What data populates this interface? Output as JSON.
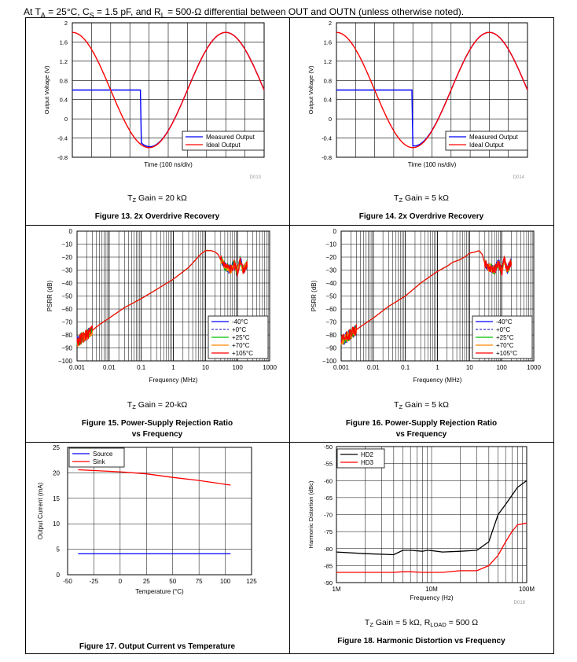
{
  "header": {
    "prefix": "At T",
    "ta_sub": "A",
    "ta_value": " = 25°C, C",
    "cs_sub": "S",
    "cs_value": " = 1.5 pF, and R",
    "rl_sub": "L",
    "rl_value": " = 500-Ω differential between OUT and OUTN (unless otherwise noted)."
  },
  "colors": {
    "measured": "#0000ff",
    "ideal": "#ff0000",
    "temp_m40": "#0000ff",
    "temp_0": "#3333cc",
    "temp_25": "#00c000",
    "temp_70": "#ff8800",
    "temp_105": "#ff0000",
    "hd2": "#000000",
    "hd3": "#ff0000",
    "source": "#0000ff",
    "sink": "#ff0000"
  },
  "chart_data": [
    {
      "id": "fig13",
      "type": "line",
      "title": "Figure 13. 2x Overdrive Recovery",
      "condition": "T",
      "condition_sub": "Z",
      "condition_rest": " Gain = 20 kΩ",
      "code": "D013",
      "xlabel": "Time (100 ns/div)",
      "ylabel": "Output Voltage (V)",
      "ylim": [
        -0.8,
        2
      ],
      "yticks": [
        "2",
        "1.6",
        "1.2",
        "0.8",
        "0.4",
        "0",
        "-0.4",
        "-0.8"
      ],
      "xlim": [
        0,
        10
      ],
      "legend": [
        "Measured Output",
        "Ideal Output"
      ],
      "ideal_wave": {
        "offset": 0.6,
        "amplitude": 1.2,
        "period_div": 8,
        "start_phase_div": -2
      },
      "measured": {
        "clip_level": 0.6,
        "recover_x_div": 3.55
      }
    },
    {
      "id": "fig14",
      "type": "line",
      "title": "Figure 14. 2x Overdrive Recovery",
      "condition": "T",
      "condition_sub": "Z",
      "condition_rest": " Gain = 5 kΩ",
      "code": "D014",
      "xlabel": "Time (100 ns/div)",
      "ylabel": "Output Voltage (V)",
      "ylim": [
        -0.8,
        2
      ],
      "yticks": [
        "2",
        "1.6",
        "1.2",
        "0.8",
        "0.4",
        "0",
        "-0.4",
        "-0.8"
      ],
      "xlim": [
        0,
        10
      ],
      "legend": [
        "Measured Output",
        "Ideal Output"
      ],
      "ideal_wave": {
        "offset": 0.6,
        "amplitude": 1.2,
        "period_div": 8,
        "start_phase_div": -2
      },
      "measured": {
        "clip_level": 0.6,
        "recover_x_div": 3.95
      }
    },
    {
      "id": "fig15",
      "type": "line",
      "title": "Figure 15. Power-Supply Rejection Ratio",
      "title2": "vs Frequency",
      "condition": "T",
      "condition_sub": "Z",
      "condition_rest": " Gain = 20-kΩ",
      "xlabel": "Frequency (MHz)",
      "ylabel": "PSRR (dB)",
      "ylim": [
        -100,
        0
      ],
      "yticks": [
        "0",
        "−10",
        "−20",
        "−30",
        "−40",
        "−50",
        "−60",
        "−70",
        "−80",
        "−90",
        "−100"
      ],
      "xticks": [
        "0.001",
        "0.01",
        "0.1",
        "1",
        "10",
        "100",
        "1000"
      ],
      "legend": [
        "-40°C",
        "+0°C",
        "+25°C",
        "+70°C",
        "+105°C"
      ],
      "curve": [
        [
          0.001,
          -85
        ],
        [
          0.002,
          -80
        ],
        [
          0.005,
          -72
        ],
        [
          0.01,
          -67
        ],
        [
          0.03,
          -59
        ],
        [
          0.1,
          -52
        ],
        [
          0.3,
          -45
        ],
        [
          1,
          -37
        ],
        [
          3,
          -28
        ],
        [
          5,
          -22
        ],
        [
          7,
          -18
        ],
        [
          10,
          -15
        ],
        [
          15,
          -15
        ],
        [
          20,
          -16
        ],
        [
          25,
          -18
        ],
        [
          30,
          -22
        ],
        [
          40,
          -27
        ],
        [
          60,
          -30
        ],
        [
          80,
          -25
        ],
        [
          100,
          -32
        ],
        [
          120,
          -22
        ],
        [
          150,
          -30
        ],
        [
          200,
          -25
        ]
      ]
    },
    {
      "id": "fig16",
      "type": "line",
      "title": "Figure 16. Power-Supply Rejection Ratio",
      "title2": "vs Frequency",
      "condition": "T",
      "condition_sub": "Z",
      "condition_rest": " Gain = 5 kΩ",
      "xlabel": "Frequency (MHz)",
      "ylabel": "PSRR (dB)",
      "ylim": [
        -100,
        0
      ],
      "yticks": [
        "0",
        "−10",
        "−20",
        "−30",
        "−40",
        "−50",
        "−60",
        "−70",
        "−80",
        "−90",
        "−100"
      ],
      "xticks": [
        "0.001",
        "0.01",
        "0.1",
        "1",
        "10",
        "100",
        "1000"
      ],
      "legend": [
        "-40°C",
        "+0°C",
        "+25°C",
        "+70°C",
        "+105°C"
      ],
      "curve": [
        [
          0.001,
          -85
        ],
        [
          0.002,
          -79
        ],
        [
          0.005,
          -72
        ],
        [
          0.01,
          -67
        ],
        [
          0.03,
          -58
        ],
        [
          0.1,
          -50
        ],
        [
          0.3,
          -40
        ],
        [
          1,
          -31
        ],
        [
          2,
          -27
        ],
        [
          3,
          -24
        ],
        [
          5,
          -22
        ],
        [
          8,
          -19
        ],
        [
          10,
          -17
        ],
        [
          15,
          -16
        ],
        [
          20,
          -15
        ],
        [
          25,
          -18
        ],
        [
          30,
          -25
        ],
        [
          40,
          -28
        ],
        [
          60,
          -30
        ],
        [
          80,
          -24
        ],
        [
          100,
          -32
        ],
        [
          120,
          -22
        ],
        [
          150,
          -30
        ],
        [
          200,
          -23
        ]
      ]
    },
    {
      "id": "fig17",
      "type": "line",
      "title": "Figure 17. Output Current vs Temperature",
      "xlabel": "Temperature (°C)",
      "ylabel": "Output Current (mA)",
      "xlim": [
        -50,
        125
      ],
      "ylim": [
        0,
        25
      ],
      "xticks": [
        "-50",
        "-25",
        "0",
        "25",
        "50",
        "75",
        "100",
        "125"
      ],
      "yticks": [
        "25",
        "20",
        "15",
        "10",
        "5",
        "0"
      ],
      "legend": [
        "Source",
        "Sink"
      ],
      "series": [
        {
          "name": "Source",
          "x": [
            -40,
            105
          ],
          "values": [
            4.1,
            4.1
          ]
        },
        {
          "name": "Sink",
          "x": [
            -40,
            0,
            25,
            50,
            75,
            105
          ],
          "values": [
            20.6,
            20.2,
            19.8,
            19.1,
            18.5,
            17.6
          ]
        }
      ]
    },
    {
      "id": "fig18",
      "type": "line",
      "title": "Figure 18. Harmonic Distortion vs Frequency",
      "condition": "T",
      "condition_sub": "Z",
      "condition_rest": " Gain = 5 kΩ, R",
      "condition_sub2": "LOAD",
      "condition_rest2": " = 500 Ω",
      "code": "D018",
      "xlabel": "Frequency (Hz)",
      "ylabel": "Harmonic Distortion (dBc)",
      "ylim": [
        -90,
        -50
      ],
      "yticks": [
        "-50",
        "-55",
        "-60",
        "-65",
        "-70",
        "-75",
        "-80",
        "-85",
        "-90"
      ],
      "xticks": [
        "1M",
        "10M",
        "100M"
      ],
      "legend": [
        "HD2",
        "HD3"
      ],
      "series": [
        {
          "name": "HD2",
          "x": [
            1000000.0,
            2000000.0,
            4000000.0,
            5000000.0,
            6000000.0,
            8000000.0,
            9000000.0,
            10000000.0,
            13000000.0,
            20000000.0,
            30000000.0,
            40000000.0,
            50000000.0,
            60000000.0,
            80000000.0,
            100000000.0
          ],
          "values": [
            -81,
            -81.5,
            -81.8,
            -80.5,
            -80.5,
            -80.8,
            -80.5,
            -80.6,
            -81,
            -80.8,
            -80.5,
            -78,
            -70,
            -67,
            -62,
            -60
          ]
        },
        {
          "name": "HD3",
          "x": [
            1000000.0,
            2000000.0,
            4000000.0,
            5000000.0,
            6000000.0,
            8000000.0,
            10000000.0,
            13000000.0,
            20000000.0,
            30000000.0,
            40000000.0,
            50000000.0,
            60000000.0,
            70000000.0,
            80000000.0,
            100000000.0
          ],
          "values": [
            -87,
            -87,
            -87,
            -86.8,
            -86.8,
            -87,
            -87,
            -87,
            -86.5,
            -86.5,
            -85,
            -82,
            -78,
            -75,
            -73,
            -72.5
          ]
        }
      ]
    }
  ]
}
